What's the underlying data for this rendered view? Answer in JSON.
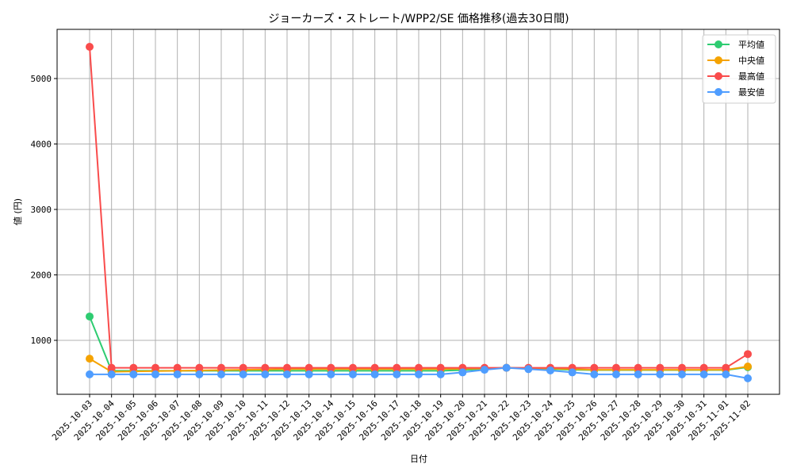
{
  "chart_data": {
    "type": "line",
    "title": "ジョーカーズ・ストレート/WPP2/SE 価格推移(過去30日間)",
    "xlabel": "日付",
    "ylabel": "値 (円)",
    "ylim": [
      130,
      5750
    ],
    "yticks": [
      1000,
      2000,
      3000,
      4000,
      5000
    ],
    "grid": true,
    "legend_position": "upper right",
    "categories": [
      "2025-10-03",
      "2025-10-04",
      "2025-10-05",
      "2025-10-06",
      "2025-10-07",
      "2025-10-08",
      "2025-10-09",
      "2025-10-10",
      "2025-10-11",
      "2025-10-12",
      "2025-10-13",
      "2025-10-14",
      "2025-10-15",
      "2025-10-16",
      "2025-10-17",
      "2025-10-18",
      "2025-10-19",
      "2025-10-20",
      "2025-10-21",
      "2025-10-22",
      "2025-10-23",
      "2025-10-24",
      "2025-10-25",
      "2025-10-26",
      "2025-10-27",
      "2025-10-28",
      "2025-10-29",
      "2025-10-30",
      "2025-10-31",
      "2025-11-01",
      "2025-11-02"
    ],
    "series": [
      {
        "name": "平均値",
        "color": "#2ecc71",
        "values": [
          1364,
          535,
          535,
          535,
          535,
          535,
          535,
          535,
          535,
          535,
          535,
          535,
          535,
          535,
          535,
          535,
          535,
          545,
          560,
          580,
          570,
          560,
          550,
          545,
          545,
          545,
          545,
          545,
          545,
          545,
          590
        ]
      },
      {
        "name": "中央値",
        "color": "#f5a300",
        "values": [
          720,
          520,
          525,
          530,
          535,
          540,
          545,
          550,
          555,
          560,
          560,
          560,
          560,
          560,
          560,
          560,
          560,
          565,
          570,
          580,
          575,
          570,
          560,
          550,
          550,
          550,
          550,
          550,
          550,
          550,
          600
        ]
      },
      {
        "name": "最高値",
        "color": "#f94c4c",
        "values": [
          5485,
          580,
          580,
          580,
          580,
          580,
          580,
          580,
          580,
          580,
          580,
          580,
          580,
          580,
          580,
          580,
          580,
          580,
          580,
          580,
          580,
          580,
          580,
          580,
          580,
          580,
          580,
          580,
          580,
          580,
          790
        ]
      },
      {
        "name": "最安値",
        "color": "#4f9dff",
        "values": [
          480,
          480,
          480,
          480,
          480,
          480,
          480,
          480,
          480,
          480,
          480,
          480,
          480,
          480,
          480,
          480,
          480,
          510,
          550,
          580,
          560,
          540,
          510,
          480,
          480,
          480,
          480,
          480,
          480,
          480,
          420
        ]
      }
    ]
  }
}
